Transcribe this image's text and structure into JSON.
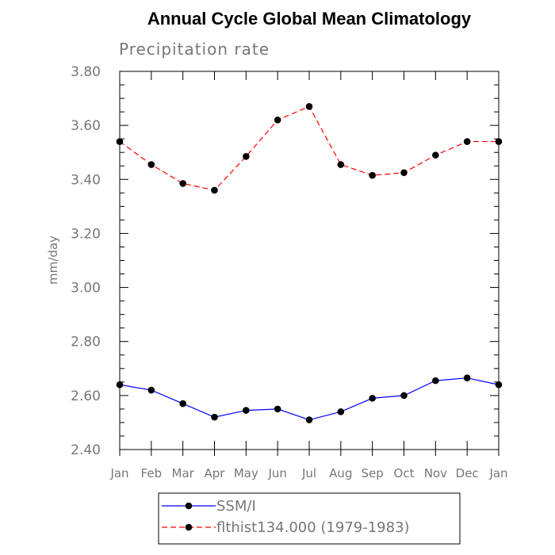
{
  "chart_data": {
    "type": "line",
    "title": "Annual Cycle Global Mean Climatology",
    "subtitle": "Precipitation rate",
    "ylabel": "mm/day",
    "xlabel": "",
    "ylim": [
      2.4,
      3.8
    ],
    "yticks": [
      "2.40",
      "2.60",
      "2.80",
      "3.00",
      "3.20",
      "3.40",
      "3.60",
      "3.80"
    ],
    "categories": [
      "Jan",
      "Feb",
      "Mar",
      "Apr",
      "May",
      "Jun",
      "Jul",
      "Aug",
      "Sep",
      "Oct",
      "Nov",
      "Dec",
      "Jan"
    ],
    "grid": false,
    "legend_position": "bottom",
    "series": [
      {
        "name": "SSM/I",
        "color": "#0000ff",
        "line_style": "solid",
        "marker": "filled-circle",
        "values": [
          2.64,
          2.62,
          2.57,
          2.52,
          2.545,
          2.55,
          2.51,
          2.54,
          2.59,
          2.6,
          2.655,
          2.665,
          2.64
        ]
      },
      {
        "name": "flthist134.000 (1979-1983)",
        "color": "#ff0000",
        "line_style": "dashed",
        "marker": "filled-circle",
        "values": [
          3.54,
          3.455,
          3.385,
          3.36,
          3.485,
          3.62,
          3.67,
          3.455,
          3.415,
          3.425,
          3.49,
          3.54,
          3.54
        ]
      }
    ]
  }
}
